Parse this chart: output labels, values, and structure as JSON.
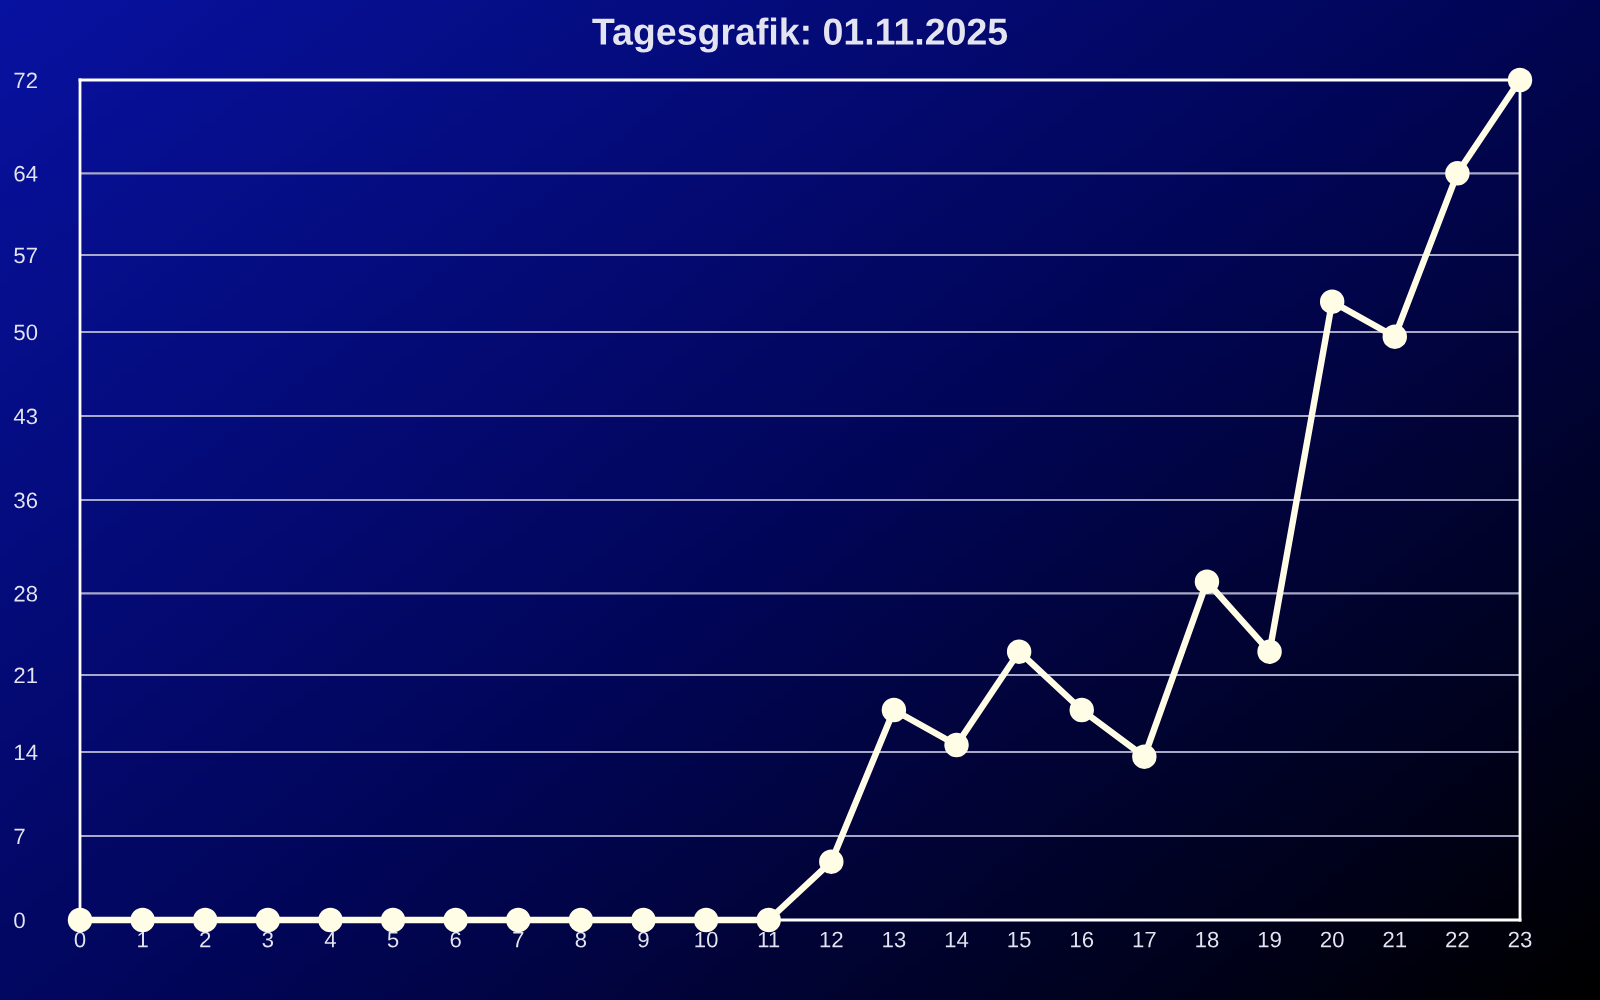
{
  "chart_data": {
    "type": "line",
    "title": "Tagesgrafik: 01.11.2025",
    "x": [
      0,
      1,
      2,
      3,
      4,
      5,
      6,
      7,
      8,
      9,
      10,
      11,
      12,
      13,
      14,
      15,
      16,
      17,
      18,
      19,
      20,
      21,
      22,
      23
    ],
    "series": [
      {
        "color": "#fffde6",
        "values": [
          0,
          0,
          0,
          0,
          0,
          0,
          0,
          0,
          0,
          0,
          0,
          0,
          5,
          18,
          15,
          23,
          18,
          14,
          29,
          23,
          53,
          50,
          64,
          72
        ]
      }
    ],
    "xlim": [
      0,
      23
    ],
    "xticks": [
      0,
      1,
      2,
      3,
      4,
      5,
      6,
      7,
      8,
      9,
      10,
      11,
      12,
      13,
      14,
      15,
      16,
      17,
      18,
      19,
      20,
      21,
      22,
      23
    ],
    "ylim": [
      0,
      72
    ],
    "yticks": [
      0,
      {
        "value": 7.2,
        "label": "7"
      },
      {
        "value": 14.4,
        "label": "14"
      },
      21,
      28,
      36,
      {
        "value": 43.2,
        "label": "43"
      },
      {
        "value": 50.4,
        "label": "50"
      },
      57,
      64,
      72
    ],
    "grid": "y",
    "marker": "circle",
    "line_style": "solid"
  }
}
